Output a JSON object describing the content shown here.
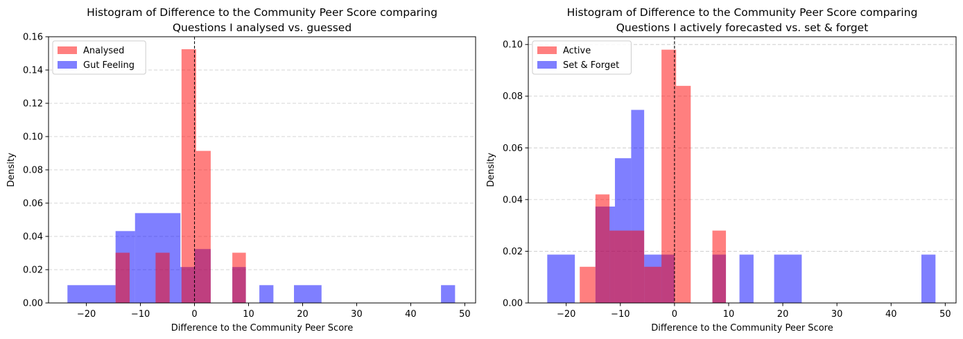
{
  "chart_data": [
    {
      "type": "histogram",
      "title": [
        "Histogram of Difference to the Community Peer Score comparing",
        "Questions I analysed vs. guessed"
      ],
      "xlabel": "Difference to the Community Peer Score",
      "ylabel": "Density",
      "xlim": [
        -27,
        52
      ],
      "ylim": [
        0,
        0.16
      ],
      "xticks": [
        -20,
        -10,
        0,
        10,
        20,
        30,
        40,
        50
      ],
      "xtick_labels": [
        "−20",
        "−10",
        "0",
        "10",
        "20",
        "30",
        "40",
        "50"
      ],
      "yticks": [
        0,
        0.02,
        0.04,
        0.06,
        0.08,
        0.1,
        0.12,
        0.14,
        0.16
      ],
      "ytick_labels": [
        "0.00",
        "0.02",
        "0.04",
        "0.06",
        "0.08",
        "0.10",
        "0.12",
        "0.14",
        "0.16"
      ],
      "grid": "y-dashed",
      "vline_x": 0,
      "legend_position": "top-left",
      "series": [
        {
          "name": "Gut Feeling",
          "color": "#0000ff",
          "alpha": 0.5,
          "bins": [
            {
              "x0": -23.5,
              "x1": -14.6,
              "y": 0.0107
            },
            {
              "x0": -14.6,
              "x1": -11.0,
              "y": 0.0432
            },
            {
              "x0": -11.0,
              "x1": -2.6,
              "y": 0.054
            },
            {
              "x0": -2.6,
              "x1": 0.0,
              "y": 0.0216
            },
            {
              "x0": 0.0,
              "x1": 3.0,
              "y": 0.0324
            },
            {
              "x0": 7.0,
              "x1": 9.5,
              "y": 0.0216
            },
            {
              "x0": 12.0,
              "x1": 14.6,
              "y": 0.0107
            },
            {
              "x0": 18.4,
              "x1": 23.5,
              "y": 0.0107
            },
            {
              "x0": 45.6,
              "x1": 48.2,
              "y": 0.0107
            }
          ]
        },
        {
          "name": "Analysed",
          "color": "#ff0000",
          "alpha": 0.5,
          "bins": [
            {
              "x0": -14.6,
              "x1": -12.0,
              "y": 0.0302
            },
            {
              "x0": -7.2,
              "x1": -4.6,
              "y": 0.0302
            },
            {
              "x0": -2.4,
              "x1": 0.3,
              "y": 0.1525
            },
            {
              "x0": 0.3,
              "x1": 3.0,
              "y": 0.0914
            },
            {
              "x0": 7.0,
              "x1": 9.5,
              "y": 0.0302
            }
          ]
        }
      ]
    },
    {
      "type": "histogram",
      "title": [
        "Histogram of Difference to the Community Peer Score comparing",
        "Questions I actively forecasted vs. set & forget"
      ],
      "xlabel": "Difference to the Community Peer Score",
      "ylabel": "Density",
      "xlim": [
        -27,
        52
      ],
      "ylim": [
        0,
        0.103
      ],
      "xticks": [
        -20,
        -10,
        0,
        10,
        20,
        30,
        40,
        50
      ],
      "xtick_labels": [
        "−20",
        "−10",
        "0",
        "10",
        "20",
        "30",
        "40",
        "50"
      ],
      "yticks": [
        0,
        0.02,
        0.04,
        0.06,
        0.08,
        0.1
      ],
      "ytick_labels": [
        "0.00",
        "0.02",
        "0.04",
        "0.06",
        "0.08",
        "0.10"
      ],
      "grid": "y-dashed",
      "vline_x": 0,
      "legend_position": "top-left",
      "series": [
        {
          "name": "Set & Forget",
          "color": "#0000ff",
          "alpha": 0.5,
          "bins": [
            {
              "x0": -23.5,
              "x1": -18.4,
              "y": 0.0187
            },
            {
              "x0": -14.6,
              "x1": -11.0,
              "y": 0.0373
            },
            {
              "x0": -11.0,
              "x1": -8.0,
              "y": 0.056
            },
            {
              "x0": -8.0,
              "x1": -5.6,
              "y": 0.0747
            },
            {
              "x0": -5.6,
              "x1": -2.6,
              "y": 0.0187
            },
            {
              "x0": -2.6,
              "x1": 0.0,
              "y": 0.0187
            },
            {
              "x0": 7.0,
              "x1": 9.5,
              "y": 0.0187
            },
            {
              "x0": 12.0,
              "x1": 14.6,
              "y": 0.0187
            },
            {
              "x0": 18.4,
              "x1": 23.5,
              "y": 0.0187
            },
            {
              "x0": 45.6,
              "x1": 48.2,
              "y": 0.0187
            }
          ]
        },
        {
          "name": "Active",
          "color": "#ff0000",
          "alpha": 0.5,
          "bins": [
            {
              "x0": -17.5,
              "x1": -14.6,
              "y": 0.014
            },
            {
              "x0": -14.6,
              "x1": -12.0,
              "y": 0.042
            },
            {
              "x0": -12.0,
              "x1": -5.6,
              "y": 0.028
            },
            {
              "x0": -5.6,
              "x1": -2.4,
              "y": 0.014
            },
            {
              "x0": -2.4,
              "x1": 0.3,
              "y": 0.098
            },
            {
              "x0": 0.3,
              "x1": 3.0,
              "y": 0.084
            },
            {
              "x0": 7.0,
              "x1": 9.5,
              "y": 0.028
            }
          ]
        }
      ]
    }
  ]
}
